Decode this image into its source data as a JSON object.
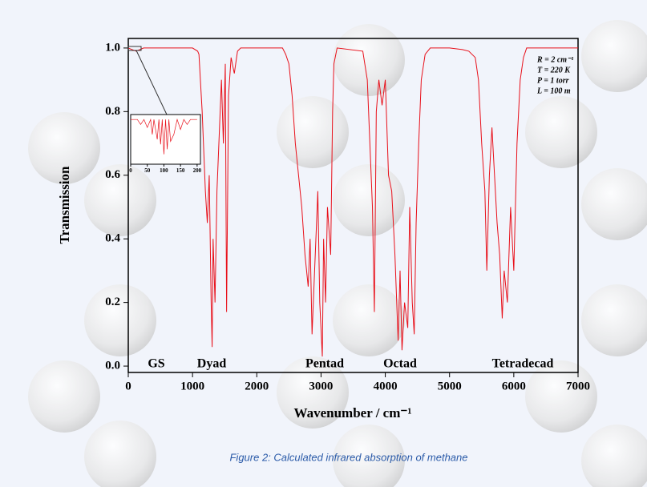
{
  "chart_data": [
    {
      "type": "line",
      "xlabel": "Wavenumber / cm⁻¹",
      "ylabel": "Transmission",
      "xlim": [
        0,
        7000
      ],
      "ylim": [
        -0.02,
        1.03
      ],
      "xticks": [
        0,
        1000,
        2000,
        3000,
        4000,
        5000,
        6000,
        7000
      ],
      "yticks": [
        {
          "value": 0,
          "label": "0.0"
        },
        0.2,
        0.4,
        0.6,
        0.8,
        {
          "value": 1,
          "label": "1.0"
        }
      ],
      "annotations": [
        "GS",
        "Dyad",
        "Pentad",
        "Octad",
        "Tetradecad"
      ],
      "parameters": [
        "R = 2 cm⁻¹",
        "T = 220 K",
        "P = 1 torr",
        "L = 100 m"
      ],
      "series": [
        {
          "color": "#e8101a",
          "x": [
            0,
            60,
            120,
            180,
            240,
            1000,
            1080,
            1100,
            1150,
            1200,
            1230,
            1260,
            1290,
            1305,
            1320,
            1350,
            1380,
            1420,
            1450,
            1480,
            1510,
            1530,
            1560,
            1600,
            1650,
            1700,
            1750,
            2400,
            2450,
            2500,
            2550,
            2600,
            2650,
            2700,
            2750,
            2800,
            2830,
            2860,
            2900,
            2950,
            2980,
            3020,
            3040,
            3070,
            3100,
            3150,
            3180,
            3200,
            3250,
            3650,
            3720,
            3760,
            3800,
            3830,
            3860,
            3900,
            3950,
            4000,
            4050,
            4100,
            4150,
            4200,
            4230,
            4260,
            4300,
            4350,
            4380,
            4420,
            4450,
            4480,
            4520,
            4560,
            4620,
            4700,
            5000,
            5200,
            5300,
            5400,
            5450,
            5500,
            5550,
            5580,
            5620,
            5660,
            5700,
            5740,
            5780,
            5820,
            5850,
            5900,
            5950,
            6000,
            6050,
            6100,
            6150,
            6200,
            7000
          ],
          "values": [
            1.0,
            0.995,
            0.99,
            0.995,
            1.0,
            1.0,
            0.99,
            0.98,
            0.8,
            0.55,
            0.45,
            0.6,
            0.2,
            0.06,
            0.4,
            0.2,
            0.55,
            0.75,
            0.9,
            0.7,
            0.95,
            0.17,
            0.85,
            0.97,
            0.92,
            0.99,
            1.0,
            1.0,
            0.98,
            0.95,
            0.85,
            0.7,
            0.6,
            0.5,
            0.35,
            0.25,
            0.4,
            0.1,
            0.3,
            0.55,
            0.2,
            0.03,
            0.4,
            0.2,
            0.5,
            0.35,
            0.8,
            0.95,
            1.0,
            0.99,
            0.9,
            0.7,
            0.5,
            0.17,
            0.8,
            0.9,
            0.82,
            0.9,
            0.6,
            0.55,
            0.35,
            0.08,
            0.3,
            0.05,
            0.2,
            0.12,
            0.5,
            0.2,
            0.1,
            0.45,
            0.7,
            0.9,
            0.98,
            1.0,
            1.0,
            0.995,
            0.99,
            0.97,
            0.9,
            0.7,
            0.55,
            0.3,
            0.6,
            0.75,
            0.6,
            0.45,
            0.35,
            0.15,
            0.3,
            0.2,
            0.5,
            0.3,
            0.7,
            0.9,
            0.97,
            1.0,
            1.0
          ]
        }
      ]
    },
    {
      "type": "line",
      "xlim": [
        0,
        210
      ],
      "ylim": [
        0.9955,
        1.0005
      ],
      "xticks": [
        0,
        50,
        100,
        150,
        200
      ],
      "series": [
        {
          "color": "#e8101a",
          "x": [
            0,
            20,
            30,
            40,
            50,
            60,
            65,
            70,
            80,
            85,
            90,
            95,
            100,
            105,
            110,
            115,
            120,
            130,
            140,
            150,
            160,
            170,
            180,
            200
          ],
          "values": [
            1.0,
            1.0,
            0.9995,
            1.0,
            0.9992,
            1.0,
            0.9985,
            1.0,
            0.998,
            1.0,
            0.9975,
            1.0,
            0.9965,
            1.0,
            0.997,
            1.0,
            0.9978,
            0.9985,
            1.0,
            0.999,
            1.0,
            0.9995,
            1.0,
            1.0
          ]
        }
      ]
    }
  ],
  "caption": "Figure 2: Calculated infrared absorption of methane"
}
